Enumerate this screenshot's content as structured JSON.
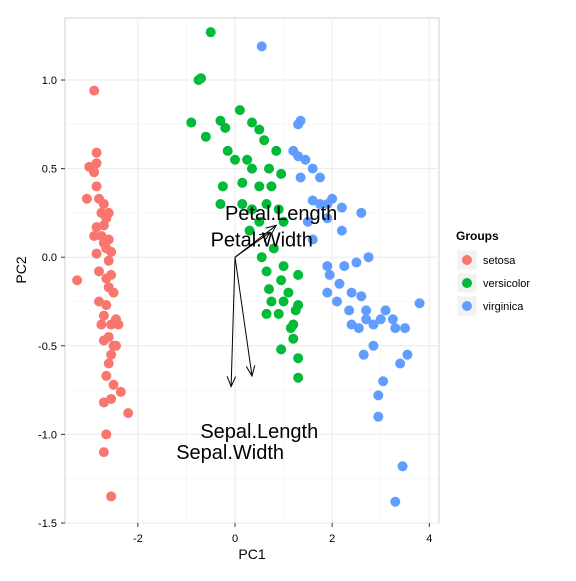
{
  "chart_data": {
    "type": "scatter",
    "title": "",
    "xlabel": "PC1",
    "ylabel": "PC2",
    "xlim": [
      -3.5,
      4.2
    ],
    "ylim": [
      -1.5,
      1.35
    ],
    "x_ticks": [
      -2,
      0,
      2,
      4
    ],
    "x_tick_labels": [
      "-2",
      "0",
      "2",
      "4"
    ],
    "y_ticks": [
      -1.5,
      -1.0,
      -0.5,
      0.0,
      0.5,
      1.0
    ],
    "y_tick_labels": [
      "-1.5",
      "-1.0",
      "-0.5",
      "0.0",
      "0.5",
      "1.0"
    ],
    "grid": true,
    "legend": {
      "title": "Groups",
      "placement": "right",
      "entries": [
        "setosa",
        "versicolor",
        "virginica"
      ]
    },
    "series": [
      {
        "name": "setosa",
        "color": "#F8766D",
        "points": [
          [
            -2.9,
            0.94
          ],
          [
            -2.85,
            0.53
          ],
          [
            -2.85,
            0.59
          ],
          [
            -3.0,
            0.51
          ],
          [
            -2.9,
            0.48
          ],
          [
            -2.85,
            0.4
          ],
          [
            -3.05,
            0.33
          ],
          [
            -2.8,
            0.33
          ],
          [
            -2.7,
            0.3
          ],
          [
            -2.75,
            0.25
          ],
          [
            -2.6,
            0.25
          ],
          [
            -2.65,
            0.22
          ],
          [
            -2.7,
            0.18
          ],
          [
            -2.85,
            0.17
          ],
          [
            -2.75,
            0.12
          ],
          [
            -2.9,
            0.12
          ],
          [
            -2.6,
            0.1
          ],
          [
            -2.55,
            0.03
          ],
          [
            -2.65,
            0.05
          ],
          [
            -2.85,
            0.02
          ],
          [
            -2.6,
            -0.02
          ],
          [
            -2.8,
            -0.08
          ],
          [
            -2.55,
            -0.1
          ],
          [
            -2.65,
            -0.12
          ],
          [
            -3.25,
            -0.13
          ],
          [
            -2.6,
            -0.17
          ],
          [
            -2.5,
            -0.2
          ],
          [
            -2.8,
            -0.25
          ],
          [
            -2.65,
            -0.27
          ],
          [
            -2.7,
            -0.33
          ],
          [
            -2.45,
            -0.35
          ],
          [
            -2.55,
            -0.38
          ],
          [
            -2.4,
            -0.38
          ],
          [
            -2.6,
            -0.45
          ],
          [
            -2.5,
            -0.5
          ],
          [
            -2.7,
            -0.47
          ],
          [
            -2.55,
            -0.55
          ],
          [
            -2.6,
            -0.6
          ],
          [
            -2.65,
            -0.67
          ],
          [
            -2.5,
            -0.72
          ],
          [
            -2.7,
            -0.82
          ],
          [
            -2.55,
            -0.8
          ],
          [
            -2.2,
            -0.88
          ],
          [
            -2.65,
            -1.0
          ],
          [
            -2.7,
            -1.1
          ],
          [
            -2.55,
            -1.35
          ],
          [
            -2.35,
            -0.76
          ],
          [
            -2.75,
            -0.38
          ],
          [
            -2.45,
            -0.5
          ],
          [
            -2.7,
            0.08
          ]
        ]
      },
      {
        "name": "versicolor",
        "color": "#00BA38",
        "points": [
          [
            -0.5,
            1.27
          ],
          [
            -0.7,
            1.01
          ],
          [
            -0.75,
            1.0
          ],
          [
            -0.9,
            0.76
          ],
          [
            -0.6,
            0.68
          ],
          [
            -0.3,
            0.77
          ],
          [
            -0.2,
            0.73
          ],
          [
            0.1,
            0.83
          ],
          [
            0.35,
            0.76
          ],
          [
            0.5,
            0.72
          ],
          [
            -0.15,
            0.6
          ],
          [
            0.0,
            0.55
          ],
          [
            0.25,
            0.55
          ],
          [
            0.6,
            0.66
          ],
          [
            0.85,
            0.6
          ],
          [
            0.35,
            0.5
          ],
          [
            0.7,
            0.5
          ],
          [
            0.95,
            0.47
          ],
          [
            -0.25,
            0.4
          ],
          [
            0.15,
            0.42
          ],
          [
            0.5,
            0.4
          ],
          [
            0.75,
            0.4
          ],
          [
            -0.3,
            0.3
          ],
          [
            0.15,
            0.3
          ],
          [
            0.35,
            0.27
          ],
          [
            0.65,
            0.3
          ],
          [
            0.9,
            0.27
          ],
          [
            0.5,
            0.2
          ],
          [
            0.3,
            0.15
          ],
          [
            1.0,
            0.2
          ],
          [
            0.8,
            0.05
          ],
          [
            0.55,
            0.0
          ],
          [
            1.0,
            -0.05
          ],
          [
            0.65,
            -0.08
          ],
          [
            1.3,
            -0.1
          ],
          [
            0.95,
            -0.13
          ],
          [
            0.7,
            -0.18
          ],
          [
            1.1,
            -0.2
          ],
          [
            0.75,
            -0.25
          ],
          [
            1.0,
            -0.25
          ],
          [
            1.3,
            -0.27
          ],
          [
            1.25,
            -0.3
          ],
          [
            1.2,
            -0.38
          ],
          [
            0.65,
            -0.32
          ],
          [
            0.9,
            -0.32
          ],
          [
            1.15,
            -0.4
          ],
          [
            1.2,
            -0.46
          ],
          [
            0.95,
            -0.52
          ],
          [
            1.3,
            -0.57
          ],
          [
            1.3,
            -0.68
          ]
        ]
      },
      {
        "name": "virginica",
        "color": "#619CFF",
        "points": [
          [
            0.55,
            1.19
          ],
          [
            1.35,
            0.77
          ],
          [
            1.3,
            0.75
          ],
          [
            1.2,
            0.6
          ],
          [
            1.3,
            0.57
          ],
          [
            1.45,
            0.55
          ],
          [
            1.6,
            0.5
          ],
          [
            1.75,
            0.45
          ],
          [
            1.35,
            0.45
          ],
          [
            1.6,
            0.32
          ],
          [
            1.75,
            0.3
          ],
          [
            1.9,
            0.3
          ],
          [
            2.0,
            0.33
          ],
          [
            2.2,
            0.28
          ],
          [
            2.6,
            0.25
          ],
          [
            1.9,
            0.22
          ],
          [
            2.2,
            0.15
          ],
          [
            1.5,
            0.2
          ],
          [
            1.6,
            0.1
          ],
          [
            1.9,
            -0.05
          ],
          [
            2.25,
            -0.05
          ],
          [
            2.5,
            -0.03
          ],
          [
            2.75,
            0.0
          ],
          [
            1.95,
            -0.1
          ],
          [
            2.15,
            -0.15
          ],
          [
            2.4,
            -0.2
          ],
          [
            1.9,
            -0.2
          ],
          [
            2.1,
            -0.25
          ],
          [
            2.6,
            -0.22
          ],
          [
            2.35,
            -0.3
          ],
          [
            2.7,
            -0.3
          ],
          [
            3.1,
            -0.3
          ],
          [
            3.25,
            -0.35
          ],
          [
            3.0,
            -0.35
          ],
          [
            2.7,
            -0.35
          ],
          [
            2.4,
            -0.38
          ],
          [
            2.55,
            -0.4
          ],
          [
            2.85,
            -0.38
          ],
          [
            3.3,
            -0.4
          ],
          [
            3.5,
            -0.4
          ],
          [
            3.8,
            -0.26
          ],
          [
            2.85,
            -0.5
          ],
          [
            3.55,
            -0.55
          ],
          [
            3.4,
            -0.6
          ],
          [
            2.65,
            -0.55
          ],
          [
            3.05,
            -0.7
          ],
          [
            2.95,
            -0.78
          ],
          [
            2.95,
            -0.9
          ],
          [
            3.45,
            -1.18
          ],
          [
            3.3,
            -1.38
          ]
        ]
      }
    ],
    "annotations": [
      {
        "text": "Petal.Length",
        "x": 0.95,
        "y": 0.25
      },
      {
        "text": "Petal.Width",
        "x": 0.55,
        "y": 0.1
      },
      {
        "text": "Sepal.Length",
        "x": 0.5,
        "y": -0.98
      },
      {
        "text": "Sepal.Width",
        "x": -0.1,
        "y": -1.1
      }
    ],
    "arrows": [
      {
        "label": "Petal.Length",
        "x0": 0.0,
        "y0": 0.0,
        "x1": 0.85,
        "y1": 0.18
      },
      {
        "label": "Petal.Width",
        "x0": 0.0,
        "y0": 0.0,
        "x1": 0.72,
        "y1": 0.14
      },
      {
        "label": "Sepal.Length",
        "x0": 0.0,
        "y0": 0.0,
        "x1": 0.35,
        "y1": -0.67
      },
      {
        "label": "Sepal.Width",
        "x0": 0.0,
        "y0": 0.0,
        "x1": -0.08,
        "y1": -0.73
      }
    ]
  }
}
